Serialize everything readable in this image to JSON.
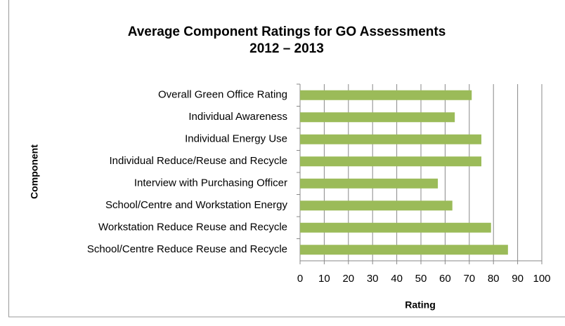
{
  "chart_data": {
    "type": "bar",
    "orientation": "horizontal",
    "title": [
      "Average Component Ratings for GO Assessments",
      "2012 – 2013"
    ],
    "x_label": "Rating",
    "y_label": "Component",
    "categories": [
      "Overall Green Office Rating",
      "Individual Awareness",
      "Individual Energy Use",
      "Individual Reduce/Reuse and Recycle",
      "Interview with Purchasing Officer",
      "School/Centre and Workstation Energy",
      "Workstation Reduce Reuse and Recycle",
      "School/Centre Reduce Reuse and Recycle"
    ],
    "values": [
      71,
      64,
      75,
      75,
      57,
      63,
      79,
      86
    ],
    "color": "#9bbb59",
    "xlim": [
      0,
      100
    ],
    "xticks": [
      0,
      10,
      20,
      30,
      40,
      50,
      60,
      70,
      80,
      90,
      100
    ],
    "grid": true
  }
}
